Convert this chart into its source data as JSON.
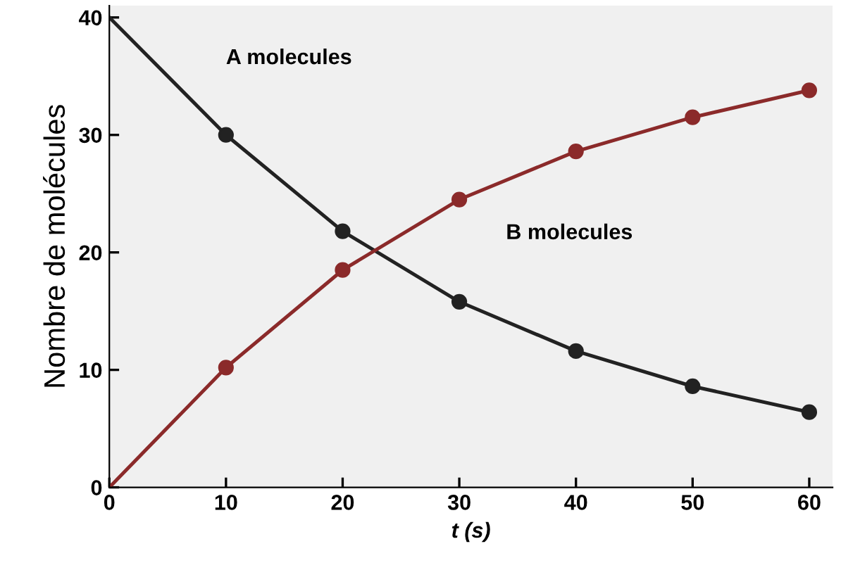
{
  "chart_data": {
    "type": "line",
    "xlabel": "t (s)",
    "ylabel": "Nombre de molécules",
    "x": [
      0,
      10,
      20,
      30,
      40,
      50,
      60
    ],
    "series": [
      {
        "name": "A molecules",
        "color": "#222222",
        "values": [
          40,
          30,
          21.8,
          15.8,
          11.6,
          8.6,
          6.4
        ]
      },
      {
        "name": "B molecules",
        "color": "#8b2a2a",
        "values": [
          0,
          10.2,
          18.5,
          24.5,
          28.6,
          31.5,
          33.8
        ]
      }
    ],
    "xlim": [
      0,
      62
    ],
    "ylim": [
      0,
      41
    ],
    "xticks": [
      0,
      10,
      20,
      30,
      40,
      50,
      60
    ],
    "yticks": [
      0,
      10,
      20,
      30,
      40
    ],
    "marker": "circle",
    "line_style": "solid",
    "grid": false,
    "legend": false
  }
}
